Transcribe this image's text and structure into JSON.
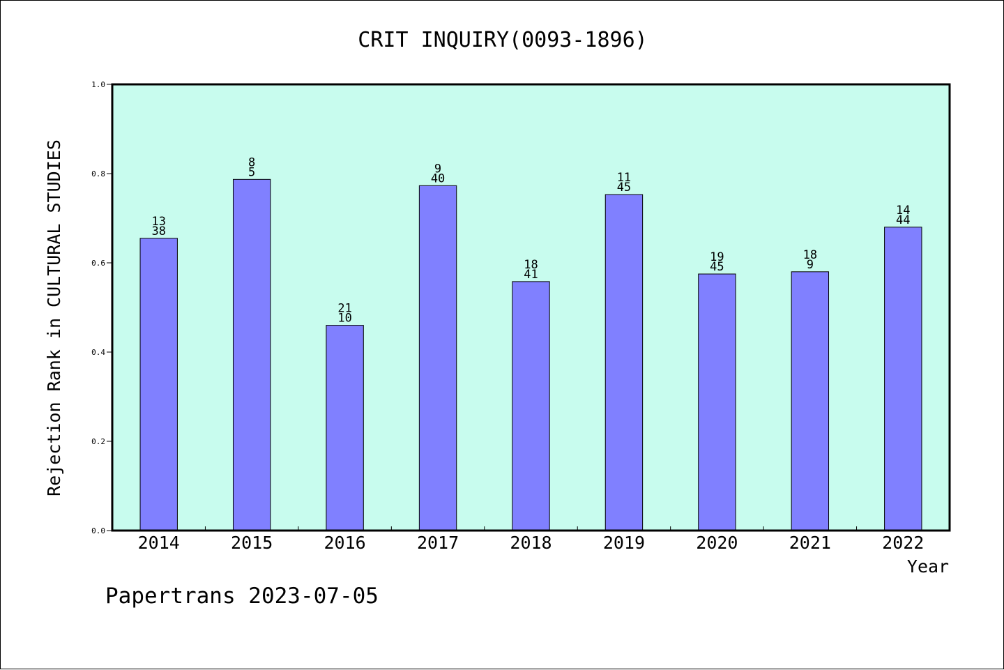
{
  "chart_data": {
    "type": "bar",
    "title": "CRIT INQUIRY(0093-1896)",
    "xlabel": "Year",
    "ylabel": "Rejection Rank in CULTURAL STUDIES",
    "ylim": [
      0,
      1.0
    ],
    "yticks": [
      "0.0",
      "0.2",
      "0.4",
      "0.6",
      "0.8",
      "1.0"
    ],
    "categories": [
      "2014",
      "2015",
      "2016",
      "2017",
      "2018",
      "2019",
      "2020",
      "2021",
      "2022"
    ],
    "values": [
      0.655,
      0.787,
      0.46,
      0.773,
      0.558,
      0.753,
      0.575,
      0.58,
      0.68
    ],
    "label_top": [
      "13",
      "8",
      "21",
      "9",
      "18",
      "11",
      "19",
      "18",
      "14"
    ],
    "label_bottom": [
      "38",
      "5",
      "10",
      "40",
      "41",
      "45",
      "45",
      "9",
      "44"
    ],
    "grid": false,
    "plot_background": "#c8fcee",
    "bar_color": "#8080ff"
  },
  "footer": {
    "text": "Papertrans 2023-07-05"
  }
}
